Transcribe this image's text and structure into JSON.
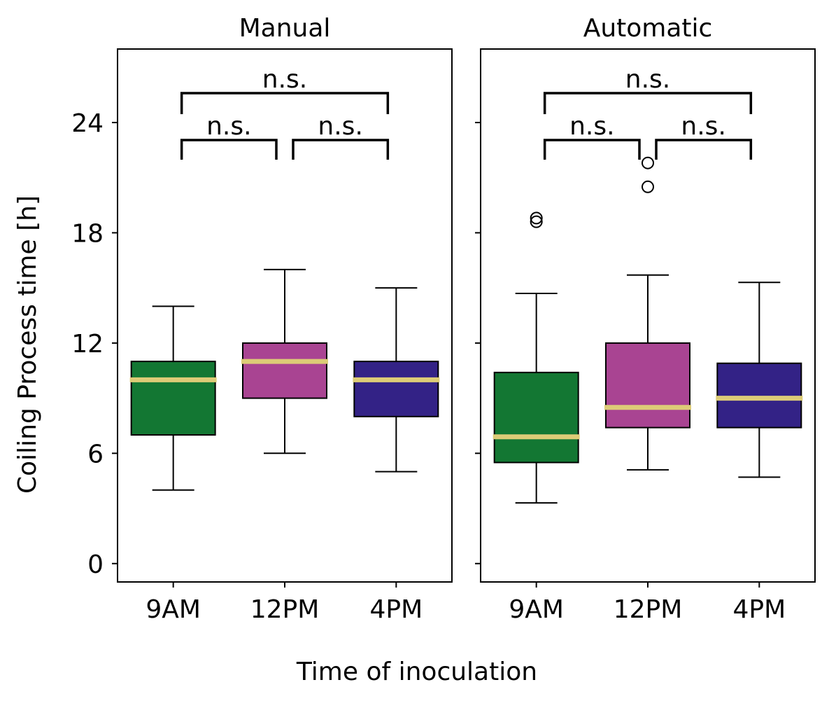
{
  "chart_data": {
    "type": "box",
    "ylabel": "Coiling Process time [h]",
    "xlabel": "Time of inoculation",
    "ylim": [
      -1,
      28
    ],
    "yticks": [
      0,
      6,
      12,
      18,
      24
    ],
    "categories": [
      "9AM",
      "12PM",
      "4PM"
    ],
    "colors": {
      "9AM": "#137733",
      "12PM": "#a94492",
      "4PM": "#332286",
      "median": "#ddcc77"
    },
    "significance_label": "n.s.",
    "panels": [
      {
        "title": "Manual",
        "boxes": [
          {
            "category": "9AM",
            "whisker_low": 4.0,
            "q1": 7.0,
            "median": 10.0,
            "q3": 11.0,
            "whisker_high": 14.0,
            "outliers": []
          },
          {
            "category": "12PM",
            "whisker_low": 6.0,
            "q1": 9.0,
            "median": 11.0,
            "q3": 12.0,
            "whisker_high": 16.0,
            "outliers": []
          },
          {
            "category": "4PM",
            "whisker_low": 5.0,
            "q1": 8.0,
            "median": 10.0,
            "q3": 11.0,
            "whisker_high": 15.0,
            "outliers": []
          }
        ],
        "comparisons": [
          {
            "from": "9AM",
            "to": "12PM",
            "label": "n.s."
          },
          {
            "from": "12PM",
            "to": "4PM",
            "label": "n.s."
          },
          {
            "from": "9AM",
            "to": "4PM",
            "label": "n.s."
          }
        ]
      },
      {
        "title": "Automatic",
        "boxes": [
          {
            "category": "9AM",
            "whisker_low": 3.3,
            "q1": 5.5,
            "median": 6.9,
            "q3": 10.4,
            "whisker_high": 14.7,
            "outliers": [
              18.6,
              18.8
            ]
          },
          {
            "category": "12PM",
            "whisker_low": 5.1,
            "q1": 7.4,
            "median": 8.5,
            "q3": 12.0,
            "whisker_high": 15.7,
            "outliers": [
              20.5,
              21.8
            ]
          },
          {
            "category": "4PM",
            "whisker_low": 4.7,
            "q1": 7.4,
            "median": 9.0,
            "q3": 10.9,
            "whisker_high": 15.3,
            "outliers": []
          }
        ],
        "comparisons": [
          {
            "from": "9AM",
            "to": "12PM",
            "label": "n.s."
          },
          {
            "from": "12PM",
            "to": "4PM",
            "label": "n.s."
          },
          {
            "from": "9AM",
            "to": "4PM",
            "label": "n.s."
          }
        ]
      }
    ]
  }
}
